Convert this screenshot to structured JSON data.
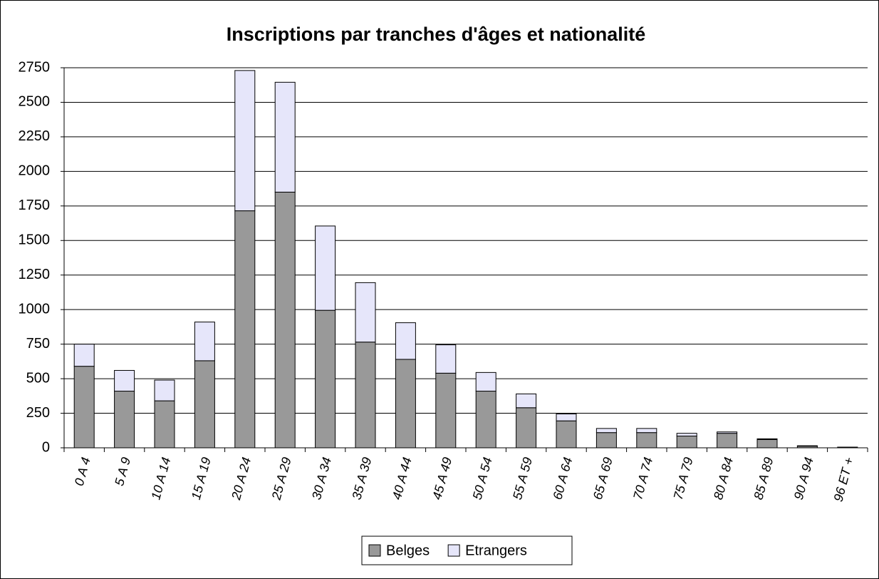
{
  "chart_data": {
    "type": "stacked_bar",
    "title": "Inscriptions par tranches d'âges et nationalité",
    "categories": [
      "0 A 4",
      "5 A 9",
      "10 A 14",
      "15 A 19",
      "20 A 24",
      "25 A 29",
      "30 A 34",
      "35 A 39",
      "40 A 44",
      "45 A 49",
      "50 A 54",
      "55 A 59",
      "60 A 64",
      "65 A 69",
      "70 A 74",
      "75 A 79",
      "80 A 84",
      "85 A 89",
      "90 A 94",
      "96 ET +"
    ],
    "series": [
      {
        "name": "Belges",
        "color": "#999999",
        "values": [
          590,
          410,
          340,
          630,
          1715,
          1850,
          995,
          765,
          640,
          540,
          410,
          290,
          195,
          110,
          110,
          85,
          105,
          60,
          12,
          5
        ]
      },
      {
        "name": "Etrangers",
        "color": "#e6e6fa",
        "values": [
          160,
          150,
          150,
          280,
          1015,
          795,
          610,
          430,
          265,
          205,
          135,
          100,
          50,
          30,
          30,
          20,
          10,
          5,
          3,
          0
        ]
      }
    ],
    "ylim": [
      0,
      2750
    ],
    "yticks": [
      0,
      250,
      500,
      750,
      1000,
      1250,
      1500,
      1750,
      2000,
      2250,
      2500,
      2750
    ],
    "grid": true,
    "legend": "bottom"
  }
}
